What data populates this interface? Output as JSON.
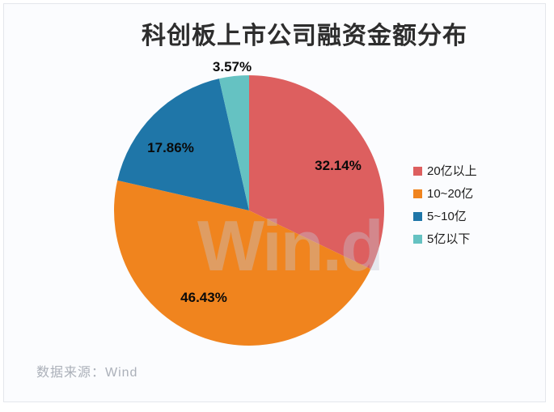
{
  "title": "科创板上市公司融资金额分布",
  "watermark": "Win.d",
  "source_note": "数据来源：Wind",
  "chart_data": {
    "type": "pie",
    "title": "科创板上市公司融资金额分布",
    "series": [
      {
        "name": "20亿以上",
        "value": 32.14,
        "color": "#dd5f5f"
      },
      {
        "name": "10~20亿",
        "value": 46.43,
        "color": "#f0841e"
      },
      {
        "name": "5~10亿",
        "value": 17.86,
        "color": "#1f76a8"
      },
      {
        "name": "5亿以下",
        "value": 3.57,
        "color": "#65c2c2"
      }
    ],
    "percent_labels": [
      "32.14%",
      "46.43%",
      "17.86%",
      "3.57%"
    ],
    "legend_position": "right",
    "label_style": "bold black percents, smallest slice labeled outside",
    "start_angle": "12 o'clock, clockwise"
  }
}
